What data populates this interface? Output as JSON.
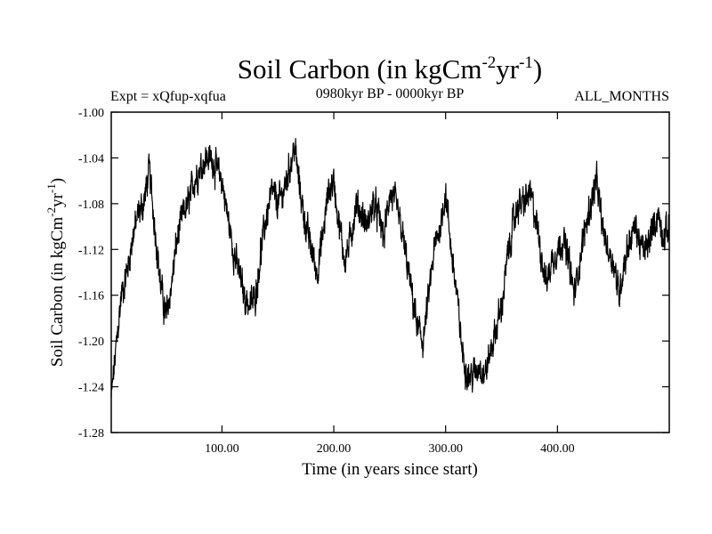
{
  "chart_data": {
    "type": "line",
    "title": {
      "main": "Soil Carbon (in kgCm",
      "sup1": "-2",
      "mid": "yr",
      "sup2": "-1",
      "end": ")"
    },
    "subtitle_left": "Expt = xQfup-xqfua",
    "subtitle_center": "0980kyr BP - 0000kyr BP",
    "subtitle_right": "ALL_MONTHS",
    "xlabel": "Time (in years since start)",
    "ylabel": {
      "main": "Soil Carbon (in kgCm",
      "sup1": "-2",
      "mid": "yr",
      "sup2": "-1",
      "end": ")"
    },
    "xlim": [
      1,
      500
    ],
    "ylim": [
      -1.28,
      -1.0
    ],
    "x_ticks": [
      100,
      200,
      300,
      400
    ],
    "x_tick_labels": [
      "100.00",
      "200.00",
      "300.00",
      "400.00"
    ],
    "y_ticks": [
      -1.0,
      -1.04,
      -1.08,
      -1.12,
      -1.16,
      -1.2,
      -1.24,
      -1.28
    ],
    "y_tick_labels": [
      "-1.00",
      "-1.04",
      "-1.08",
      "-1.12",
      "-1.16",
      "-1.20",
      "-1.24",
      "-1.28"
    ],
    "series_envelope": {
      "x": [
        1,
        3,
        6,
        10,
        15,
        20,
        25,
        30,
        35,
        40,
        45,
        50,
        55,
        60,
        65,
        70,
        75,
        80,
        85,
        90,
        95,
        100,
        105,
        110,
        115,
        120,
        125,
        130,
        135,
        140,
        145,
        150,
        155,
        160,
        165,
        170,
        175,
        180,
        185,
        190,
        195,
        200,
        205,
        210,
        215,
        220,
        225,
        230,
        235,
        240,
        245,
        250,
        255,
        260,
        265,
        270,
        275,
        280,
        285,
        290,
        295,
        300,
        305,
        310,
        315,
        320,
        325,
        330,
        335,
        340,
        345,
        350,
        355,
        360,
        365,
        370,
        375,
        380,
        385,
        390,
        395,
        400,
        405,
        410,
        415,
        420,
        425,
        430,
        435,
        440,
        445,
        450,
        455,
        460,
        465,
        470,
        475,
        480,
        485,
        490,
        495,
        500
      ],
      "y": [
        -1.25,
        -1.23,
        -1.2,
        -1.16,
        -1.14,
        -1.11,
        -1.09,
        -1.08,
        -1.05,
        -1.1,
        -1.15,
        -1.18,
        -1.15,
        -1.11,
        -1.09,
        -1.08,
        -1.06,
        -1.05,
        -1.04,
        -1.04,
        -1.05,
        -1.06,
        -1.09,
        -1.12,
        -1.14,
        -1.16,
        -1.17,
        -1.16,
        -1.12,
        -1.09,
        -1.07,
        -1.08,
        -1.07,
        -1.05,
        -1.03,
        -1.07,
        -1.1,
        -1.12,
        -1.14,
        -1.11,
        -1.07,
        -1.06,
        -1.1,
        -1.13,
        -1.11,
        -1.08,
        -1.09,
        -1.1,
        -1.08,
        -1.09,
        -1.11,
        -1.07,
        -1.08,
        -1.1,
        -1.13,
        -1.16,
        -1.19,
        -1.2,
        -1.16,
        -1.12,
        -1.1,
        -1.07,
        -1.12,
        -1.16,
        -1.21,
        -1.23,
        -1.23,
        -1.22,
        -1.23,
        -1.21,
        -1.19,
        -1.17,
        -1.13,
        -1.1,
        -1.08,
        -1.08,
        -1.07,
        -1.09,
        -1.12,
        -1.15,
        -1.13,
        -1.12,
        -1.11,
        -1.13,
        -1.16,
        -1.13,
        -1.1,
        -1.08,
        -1.06,
        -1.1,
        -1.12,
        -1.13,
        -1.16,
        -1.13,
        -1.11,
        -1.1,
        -1.12,
        -1.12,
        -1.1,
        -1.09,
        -1.11,
        -1.1
      ]
    }
  }
}
